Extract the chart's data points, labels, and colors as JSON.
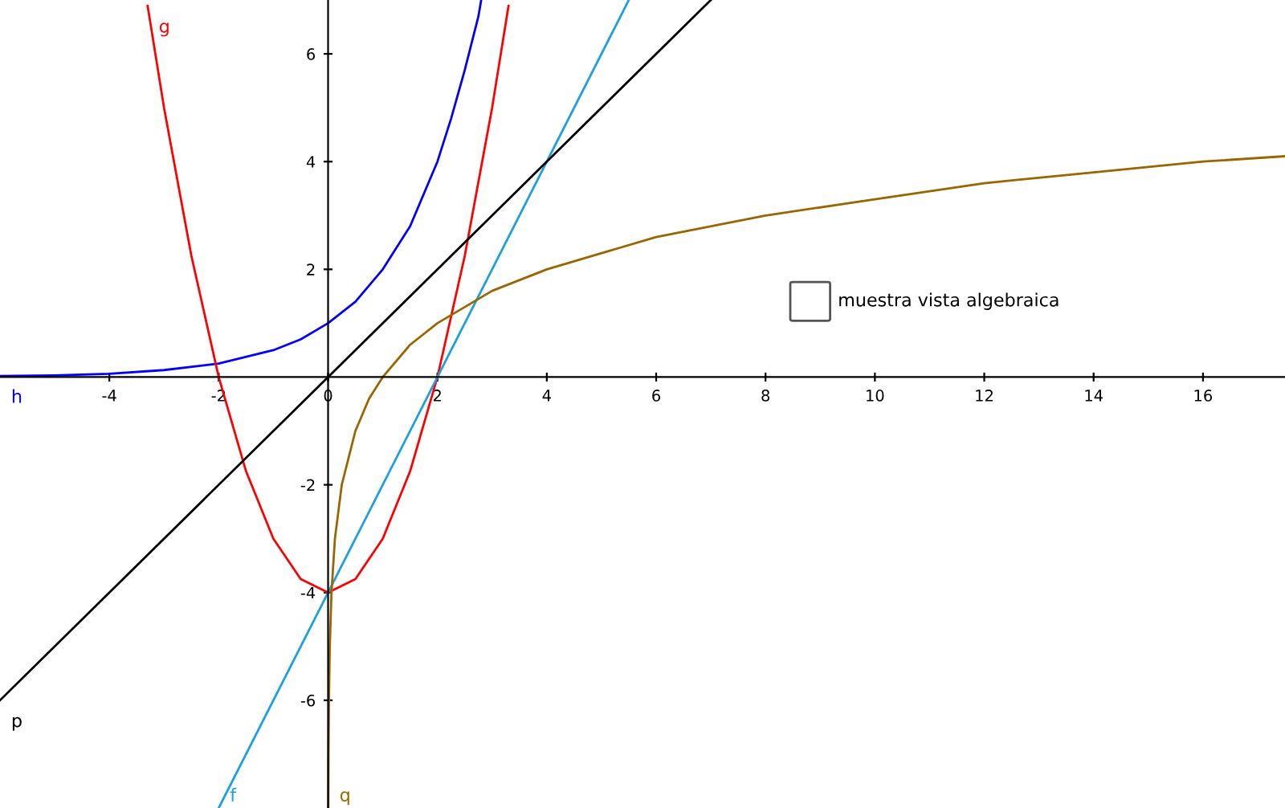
{
  "chart_data": {
    "type": "line",
    "xlim": [
      -6,
      17.5
    ],
    "ylim": [
      -8,
      7
    ],
    "xticks": [
      -4,
      -2,
      0,
      2,
      4,
      6,
      8,
      10,
      12,
      14,
      16
    ],
    "yticks": [
      -6,
      -4,
      -2,
      2,
      4,
      6
    ],
    "grid": false,
    "legend": false,
    "marker": "none",
    "line_style": "solid",
    "annotations": [
      "muestra vista algebraica"
    ],
    "series": [
      {
        "name": "h",
        "color": "#0000ff",
        "x": [
          -6,
          -5,
          -4,
          -3,
          -2,
          -1,
          -0.5,
          0,
          0.5,
          1,
          1.5,
          2,
          2.25,
          2.5,
          2.75,
          2.8
        ],
        "values": [
          0.02,
          0.03,
          0.06,
          0.13,
          0.25,
          0.5,
          0.7,
          1,
          1.4,
          2,
          2.8,
          4,
          4.8,
          5.7,
          6.7,
          7
        ]
      },
      {
        "name": "g",
        "color": "#ff0000",
        "x": [
          -3.3,
          -3,
          -2.5,
          -2,
          -1.5,
          -1,
          -0.5,
          0,
          0.5,
          1,
          1.5,
          2,
          2.5,
          3,
          3.3
        ],
        "values": [
          6.89,
          5,
          2.25,
          0,
          -1.75,
          -3,
          -3.75,
          -4,
          -3.75,
          -3,
          -1.75,
          0,
          2.25,
          5,
          6.89
        ]
      },
      {
        "name": "f",
        "color": "#1e9fe0",
        "x": [
          -2,
          5.5
        ],
        "values": [
          -8,
          7
        ]
      },
      {
        "name": "p",
        "color": "#000000",
        "x": [
          -6,
          7
        ],
        "values": [
          -6,
          7
        ]
      },
      {
        "name": "q",
        "color": "#996600",
        "x": [
          0.0039,
          0.0078,
          0.0156,
          0.03125,
          0.0625,
          0.125,
          0.25,
          0.5,
          0.75,
          1,
          1.5,
          2,
          3,
          4,
          6,
          8,
          10,
          12,
          14,
          16,
          17.5
        ],
        "values": [
          -8,
          -7,
          -6,
          -5,
          -4,
          -3,
          -2,
          -1,
          -0.4,
          0,
          0.6,
          1,
          1.6,
          2,
          2.6,
          3,
          3.3,
          3.6,
          3.8,
          4,
          4.1
        ]
      }
    ]
  }
}
